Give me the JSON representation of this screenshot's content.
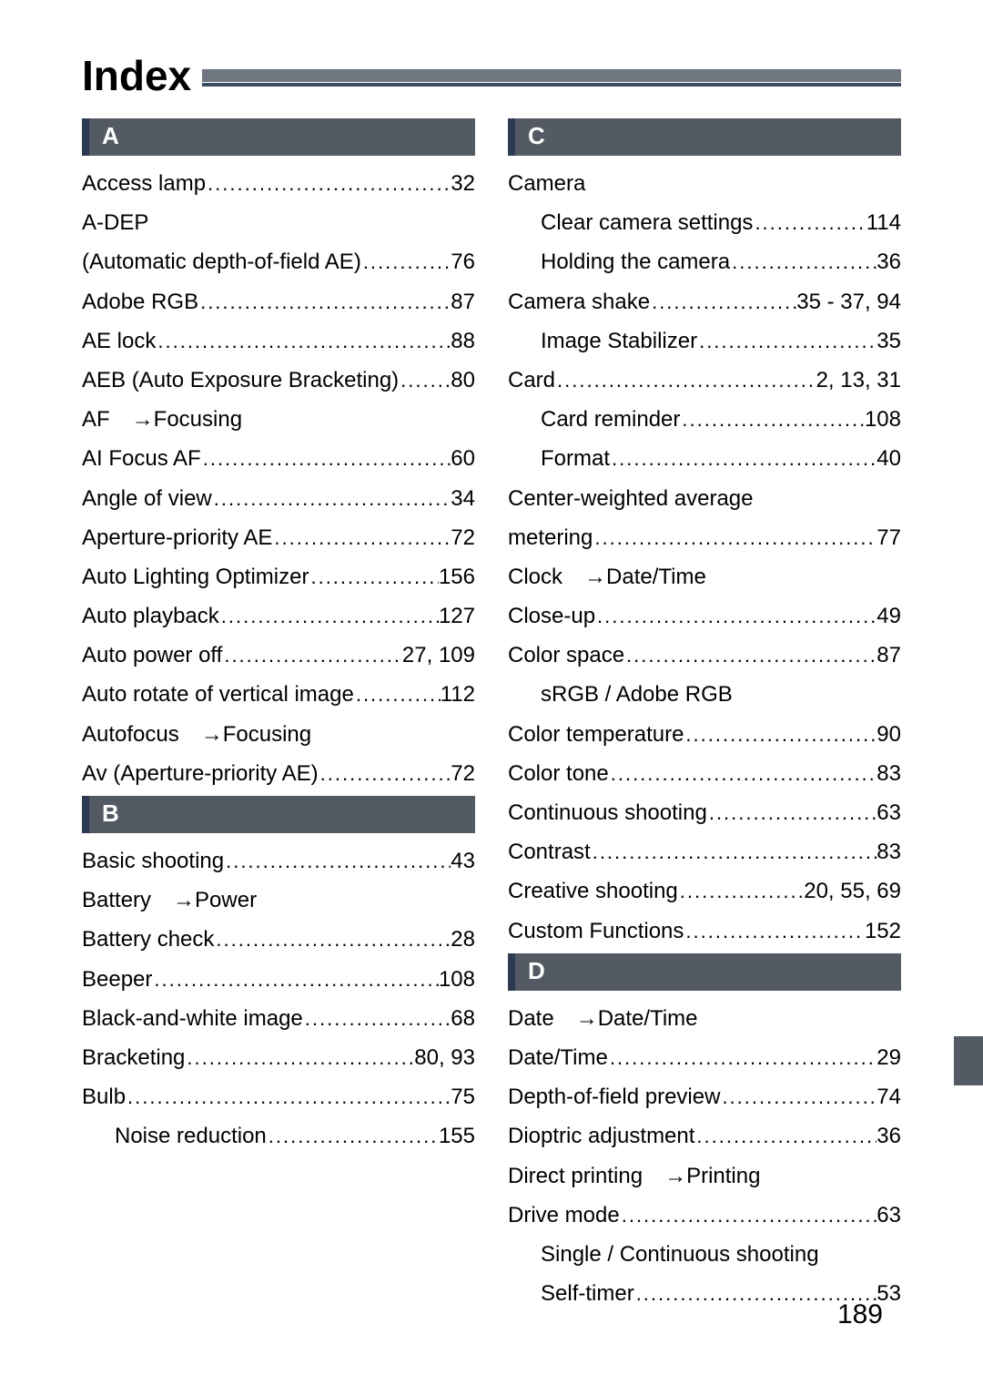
{
  "title": "Index",
  "page_number": "189",
  "colors": {
    "header_bg": "#545a64",
    "header_border": "#2c3a54",
    "title_bar": "#6f7680",
    "title_bar_under": "#3a4a63",
    "text": "#000000",
    "background": "#ffffff"
  },
  "fontsizes": {
    "title": 46,
    "section": 26,
    "body": 24,
    "pageno": 30
  },
  "left": {
    "sections": [
      {
        "letter": "A",
        "entries": [
          {
            "type": "line",
            "label": "Access lamp",
            "page": "32"
          },
          {
            "type": "plain",
            "label": "A-DEP"
          },
          {
            "type": "line",
            "label": "(Automatic depth-of-field AE)",
            "page": "76"
          },
          {
            "type": "line",
            "label": "Adobe RGB",
            "page": "87"
          },
          {
            "type": "line",
            "label": "AE lock",
            "page": "88"
          },
          {
            "type": "line",
            "label": "AEB (Auto Exposure Bracketing)",
            "page": "80"
          },
          {
            "type": "ref",
            "label": "AF",
            "target": "Focusing"
          },
          {
            "type": "line",
            "label": "AI Focus AF",
            "page": "60"
          },
          {
            "type": "line",
            "label": "Angle of view",
            "page": "34"
          },
          {
            "type": "line",
            "label": "Aperture-priority AE",
            "page": "72"
          },
          {
            "type": "line",
            "label": "Auto Lighting Optimizer",
            "page": "156"
          },
          {
            "type": "line",
            "label": "Auto playback",
            "page": "127"
          },
          {
            "type": "line",
            "label": "Auto power off",
            "page": "27, 109"
          },
          {
            "type": "line",
            "label": "Auto rotate of vertical image",
            "page": "112"
          },
          {
            "type": "ref",
            "label": "Autofocus",
            "target": "Focusing"
          },
          {
            "type": "line",
            "label": "Av (Aperture-priority AE)",
            "page": "72"
          }
        ]
      },
      {
        "letter": "B",
        "entries": [
          {
            "type": "line",
            "label": "Basic shooting",
            "page": "43"
          },
          {
            "type": "ref",
            "label": "Battery",
            "target": "Power"
          },
          {
            "type": "line",
            "label": "Battery check",
            "page": "28"
          },
          {
            "type": "line",
            "label": "Beeper",
            "page": "108"
          },
          {
            "type": "line",
            "label": "Black-and-white image",
            "page": "68"
          },
          {
            "type": "line",
            "label": "Bracketing",
            "page": "80, 93"
          },
          {
            "type": "line",
            "label": "Bulb",
            "page": "75"
          },
          {
            "type": "subline",
            "label": "Noise reduction",
            "page": "155"
          }
        ]
      }
    ]
  },
  "right": {
    "sections": [
      {
        "letter": "C",
        "entries": [
          {
            "type": "plain",
            "label": "Camera"
          },
          {
            "type": "subline",
            "label": "Clear camera settings",
            "page": "114"
          },
          {
            "type": "subline",
            "label": "Holding the camera",
            "page": "36"
          },
          {
            "type": "line",
            "label": "Camera shake",
            "page": "35 - 37, 94"
          },
          {
            "type": "subline",
            "label": "Image Stabilizer",
            "page": "35"
          },
          {
            "type": "line",
            "label": "Card",
            "page": "2, 13, 31"
          },
          {
            "type": "subline",
            "label": "Card reminder",
            "page": "108"
          },
          {
            "type": "subline",
            "label": "Format",
            "page": "40"
          },
          {
            "type": "plain",
            "label": "Center-weighted average"
          },
          {
            "type": "line",
            "label": "metering",
            "page": "77"
          },
          {
            "type": "ref",
            "label": "Clock",
            "target": "Date/Time"
          },
          {
            "type": "line",
            "label": "Close-up",
            "page": "49"
          },
          {
            "type": "line",
            "label": "Color space",
            "page": "87"
          },
          {
            "type": "subplain",
            "label": "sRGB / Adobe RGB"
          },
          {
            "type": "line",
            "label": "Color temperature",
            "page": "90"
          },
          {
            "type": "line",
            "label": "Color tone",
            "page": "83"
          },
          {
            "type": "line",
            "label": "Continuous shooting",
            "page": "63"
          },
          {
            "type": "line",
            "label": "Contrast",
            "page": "83"
          },
          {
            "type": "line",
            "label": "Creative shooting",
            "page": "20, 55, 69"
          },
          {
            "type": "line",
            "label": "Custom Functions",
            "page": "152"
          }
        ]
      },
      {
        "letter": "D",
        "entries": [
          {
            "type": "ref",
            "label": "Date",
            "target": "Date/Time"
          },
          {
            "type": "line",
            "label": "Date/Time",
            "page": "29"
          },
          {
            "type": "line",
            "label": "Depth-of-field preview",
            "page": "74"
          },
          {
            "type": "line",
            "label": "Dioptric adjustment",
            "page": "36"
          },
          {
            "type": "ref",
            "label": "Direct printing",
            "target": "Printing"
          },
          {
            "type": "line",
            "label": "Drive mode",
            "page": "63"
          },
          {
            "type": "subplain",
            "label": "Single / Continuous shooting"
          },
          {
            "type": "subline",
            "label": "Self-timer",
            "page": "53"
          }
        ]
      }
    ]
  }
}
